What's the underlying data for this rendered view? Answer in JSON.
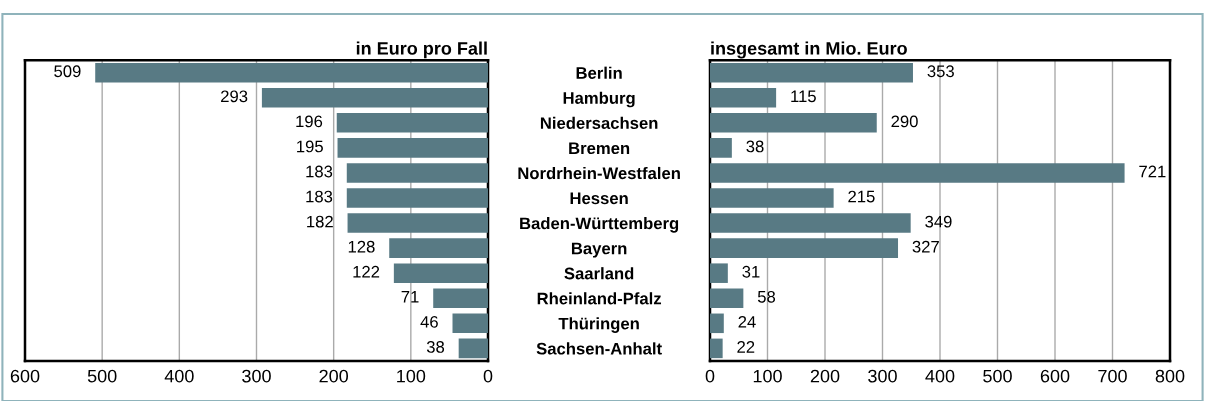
{
  "chart_data": [
    {
      "type": "bar",
      "orientation": "horizontal",
      "title": "in Euro pro Fall",
      "categories": [
        "Berlin",
        "Hamburg",
        "Niedersachsen",
        "Bremen",
        "Nordrhein-Westfalen",
        "Hessen",
        "Baden-Württemberg",
        "Bayern",
        "Saarland",
        "Rheinland-Pfalz",
        "Thüringen",
        "Sachsen-Anhalt"
      ],
      "values": [
        509,
        293,
        196,
        195,
        183,
        183,
        182,
        128,
        122,
        71,
        46,
        38
      ],
      "color": "#587a84",
      "xlim": [
        600,
        0
      ],
      "xticks": [
        600,
        500,
        400,
        300,
        200,
        100,
        0
      ],
      "grid": "x",
      "data_labels": true
    },
    {
      "type": "bar",
      "orientation": "horizontal",
      "title": "insgesamt in Mio. Euro",
      "values": [
        353,
        115,
        290,
        38,
        721,
        215,
        349,
        327,
        31,
        58,
        24,
        22
      ],
      "color": "#587a84",
      "xlim": [
        0,
        800
      ],
      "xticks": [
        0,
        100,
        200,
        300,
        400,
        500,
        600,
        700,
        800
      ],
      "grid": "x",
      "data_labels": true,
      "tick_labels": "x"
    }
  ]
}
